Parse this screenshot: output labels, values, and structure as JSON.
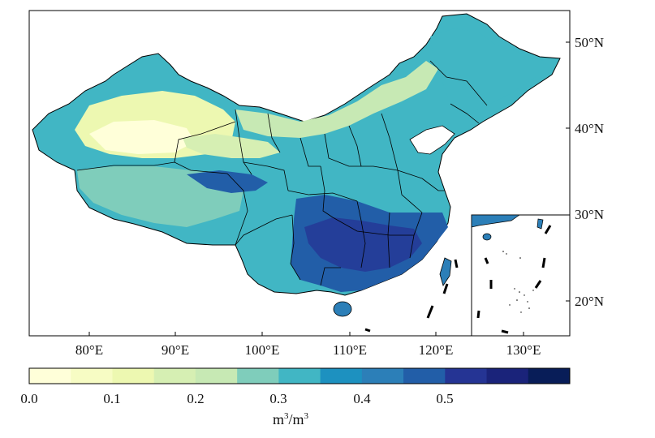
{
  "map": {
    "lon_ticks": [
      "80°E",
      "90°E",
      "100°E",
      "110°E",
      "120°E",
      "130°E"
    ],
    "lat_ticks": [
      "50°N",
      "40°N",
      "30°N",
      "20°N"
    ],
    "colorbar": {
      "ticks": [
        "0.0",
        "0.1",
        "0.2",
        "0.3",
        "0.4",
        "0.5"
      ],
      "unit_base": "m",
      "unit_exp": "3",
      "unit_sep": "/",
      "unit_exp2": "3",
      "colors": [
        "#ffffd9",
        "#f7fcc4",
        "#edf8b1",
        "#d6efb3",
        "#c7e9b4",
        "#7fcdbb",
        "#41b6c4",
        "#1d91c0",
        "#2c7fb8",
        "#225ea8",
        "#253494",
        "#1a237a",
        "#081d58"
      ]
    }
  }
}
